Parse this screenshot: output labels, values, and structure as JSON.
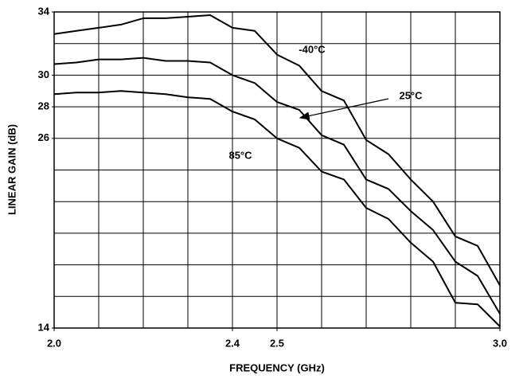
{
  "chart_data": {
    "type": "line",
    "xlabel": "FREQUENCY (GHz)",
    "ylabel": "LINEAR GAIN (dB)",
    "x": [
      2.0,
      2.05,
      2.1,
      2.15,
      2.2,
      2.25,
      2.3,
      2.35,
      2.4,
      2.45,
      2.5,
      2.55,
      2.6,
      2.65,
      2.7,
      2.75,
      2.8,
      2.85,
      2.9,
      2.95,
      3.0
    ],
    "series": [
      {
        "name": "-40°C",
        "color": "#000000",
        "values": [
          32.6,
          32.8,
          33.0,
          33.2,
          33.6,
          33.6,
          33.7,
          33.8,
          33.0,
          32.8,
          31.3,
          30.6,
          29.0,
          28.4,
          25.9,
          25.0,
          23.4,
          22.0,
          19.8,
          19.2,
          16.7
        ]
      },
      {
        "name": "25°C",
        "color": "#000000",
        "values": [
          30.7,
          30.8,
          31.0,
          31.0,
          31.1,
          30.9,
          30.9,
          30.8,
          30.0,
          29.5,
          28.3,
          27.8,
          26.2,
          25.6,
          23.4,
          22.8,
          21.4,
          20.2,
          18.2,
          17.3,
          14.9
        ]
      },
      {
        "name": "85°C",
        "color": "#000000",
        "values": [
          28.8,
          28.9,
          28.9,
          29.0,
          28.9,
          28.8,
          28.6,
          28.5,
          27.7,
          27.2,
          26.0,
          25.4,
          23.9,
          23.4,
          21.6,
          20.9,
          19.4,
          18.2,
          15.6,
          15.5,
          14.1
        ]
      }
    ],
    "xlim": [
      2.0,
      3.0
    ],
    "xticks": [
      {
        "value": 2.0,
        "label": "2.0"
      },
      2.4,
      2.5,
      {
        "value": 3.0,
        "label": "3.0"
      }
    ],
    "xgrid": [
      2.1,
      2.2,
      2.3,
      2.4,
      2.5,
      2.6,
      2.7,
      2.8,
      2.9
    ],
    "ylim": [
      14,
      34
    ],
    "yticks": [
      14,
      26,
      28,
      30,
      34
    ],
    "ygrid": [
      16,
      18,
      20,
      22,
      24,
      26,
      28,
      30,
      32
    ],
    "grid": true
  }
}
